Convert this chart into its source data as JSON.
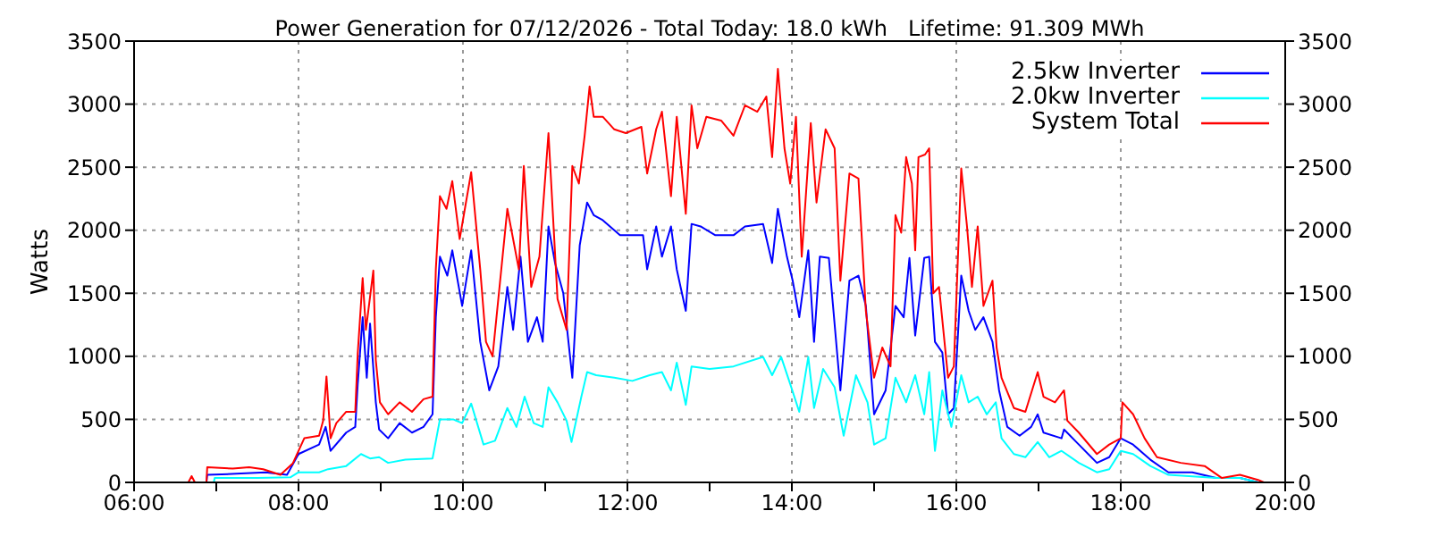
{
  "chart_data": {
    "type": "line",
    "title": "Power Generation for 07/12/2026 - Total Today: 18.0 kWh   Lifetime: 91.309 MWh",
    "ylabel": "Watts",
    "xlim": [
      6,
      20
    ],
    "xticks": [
      {
        "value": 6,
        "label": "06:00"
      },
      {
        "value": 7,
        "label": null
      },
      {
        "value": 8,
        "label": "08:00"
      },
      {
        "value": 9,
        "label": null
      },
      {
        "value": 10,
        "label": "10:00"
      },
      {
        "value": 11,
        "label": null
      },
      {
        "value": 12,
        "label": "12:00"
      },
      {
        "value": 13,
        "label": null
      },
      {
        "value": 14,
        "label": "14:00"
      },
      {
        "value": 15,
        "label": null
      },
      {
        "value": 16,
        "label": "16:00"
      },
      {
        "value": 17,
        "label": null
      },
      {
        "value": 18,
        "label": "18:00"
      },
      {
        "value": 19,
        "label": null
      },
      {
        "value": 20,
        "label": "20:00"
      }
    ],
    "ylim": [
      0,
      3500
    ],
    "yticks": [
      0,
      500,
      1000,
      1500,
      2000,
      2500,
      3000,
      3500
    ],
    "y2lim": [
      0,
      3500
    ],
    "y2ticks": [
      0,
      500,
      1000,
      1500,
      2000,
      2500,
      3000,
      3500
    ],
    "grid": true,
    "legend": "top right",
    "marker": "none",
    "line_style": "solid",
    "series": [
      {
        "name": "2.5kw Inverter",
        "color": "#0000ff",
        "x": [
          6.88,
          6.89,
          7.3,
          7.6,
          7.86,
          8.0,
          8.25,
          8.33,
          8.39,
          8.58,
          8.69,
          8.72,
          8.78,
          8.83,
          8.87,
          8.94,
          8.98,
          9.09,
          9.23,
          9.38,
          9.52,
          9.63,
          9.67,
          9.72,
          9.81,
          9.87,
          9.99,
          10.1,
          10.21,
          10.32,
          10.43,
          10.54,
          10.61,
          10.7,
          10.79,
          10.9,
          10.97,
          11.04,
          11.12,
          11.22,
          11.33,
          11.42,
          11.51,
          11.59,
          11.7,
          11.91,
          12.19,
          12.24,
          12.35,
          12.42,
          12.53,
          12.6,
          12.71,
          12.78,
          12.89,
          13.07,
          13.29,
          13.43,
          13.65,
          13.76,
          13.83,
          13.94,
          14.01,
          14.09,
          14.2,
          14.27,
          14.34,
          14.45,
          14.59,
          14.7,
          14.81,
          14.9,
          15.0,
          15.14,
          15.26,
          15.36,
          15.43,
          15.5,
          15.61,
          15.67,
          15.74,
          15.83,
          15.9,
          15.97,
          16.06,
          16.15,
          16.23,
          16.33,
          16.44,
          16.52,
          16.62,
          16.77,
          16.91,
          16.99,
          17.06,
          17.28,
          17.31,
          17.49,
          17.71,
          17.86,
          18.0,
          18.15,
          18.36,
          18.58,
          18.87,
          19.16,
          19.45,
          19.67
        ],
        "values": [
          0,
          60,
          70,
          80,
          60,
          225,
          300,
          440,
          250,
          395,
          440,
          780,
          1310,
          830,
          1260,
          635,
          420,
          350,
          470,
          395,
          440,
          540,
          1310,
          1790,
          1640,
          1840,
          1400,
          1840,
          1115,
          730,
          920,
          1550,
          1210,
          1790,
          1115,
          1310,
          1115,
          2030,
          1740,
          1500,
          830,
          1880,
          2220,
          2120,
          2080,
          1960,
          1960,
          1690,
          2030,
          1790,
          2030,
          1690,
          1360,
          2050,
          2030,
          1960,
          1960,
          2030,
          2050,
          1740,
          2170,
          1790,
          1600,
          1310,
          1840,
          1115,
          1790,
          1780,
          730,
          1600,
          1640,
          1400,
          540,
          730,
          1400,
          1310,
          1780,
          1165,
          1780,
          1790,
          1115,
          1030,
          540,
          590,
          1640,
          1360,
          1210,
          1310,
          1115,
          730,
          440,
          370,
          440,
          540,
          395,
          350,
          420,
          300,
          155,
          200,
          350,
          300,
          180,
          80,
          80,
          35,
          35,
          0
        ]
      },
      {
        "name": "2.0kw Inverter",
        "color": "#00ffff",
        "x": [
          6.97,
          6.98,
          7.5,
          7.9,
          8.0,
          8.25,
          8.36,
          8.58,
          8.76,
          8.87,
          8.98,
          9.09,
          9.3,
          9.63,
          9.72,
          9.88,
          9.99,
          10.1,
          10.25,
          10.39,
          10.54,
          10.65,
          10.75,
          10.86,
          10.97,
          11.04,
          11.15,
          11.26,
          11.32,
          11.44,
          11.51,
          11.62,
          11.84,
          12.06,
          12.27,
          12.42,
          12.53,
          12.6,
          12.71,
          12.78,
          13.0,
          13.29,
          13.65,
          13.76,
          13.87,
          13.98,
          14.09,
          14.2,
          14.27,
          14.38,
          14.52,
          14.63,
          14.78,
          14.92,
          15.0,
          15.14,
          15.26,
          15.39,
          15.5,
          15.61,
          15.67,
          15.74,
          15.83,
          15.94,
          16.06,
          16.15,
          16.26,
          16.37,
          16.48,
          16.55,
          16.7,
          16.84,
          16.99,
          17.13,
          17.28,
          17.49,
          17.71,
          17.86,
          18.0,
          18.15,
          18.36,
          18.58,
          19.16,
          19.45,
          19.67
        ],
        "values": [
          0,
          35,
          35,
          40,
          80,
          80,
          105,
          130,
          225,
          190,
          200,
          155,
          180,
          190,
          500,
          500,
          470,
          625,
          300,
          330,
          590,
          440,
          680,
          470,
          440,
          755,
          635,
          490,
          320,
          680,
          875,
          850,
          830,
          805,
          850,
          875,
          730,
          950,
          615,
          920,
          900,
          920,
          995,
          850,
          995,
          780,
          560,
          995,
          590,
          900,
          755,
          370,
          850,
          635,
          300,
          350,
          830,
          635,
          850,
          540,
          875,
          250,
          730,
          440,
          850,
          635,
          680,
          540,
          635,
          350,
          225,
          200,
          320,
          200,
          250,
          155,
          80,
          105,
          250,
          225,
          130,
          60,
          35,
          35,
          0
        ]
      },
      {
        "name": "System Total",
        "color": "#ff0000",
        "x": [
          6.66,
          6.7,
          6.74,
          6.88,
          6.89,
          7.2,
          7.4,
          7.57,
          7.78,
          7.93,
          8.07,
          8.25,
          8.3,
          8.34,
          8.39,
          8.46,
          8.58,
          8.69,
          8.72,
          8.78,
          8.82,
          8.91,
          8.94,
          8.99,
          9.09,
          9.23,
          9.38,
          9.52,
          9.63,
          9.67,
          9.72,
          9.8,
          9.87,
          9.96,
          10.1,
          10.21,
          10.28,
          10.36,
          10.54,
          10.68,
          10.74,
          10.83,
          10.93,
          11.04,
          11.15,
          11.26,
          11.33,
          11.41,
          11.48,
          11.54,
          11.59,
          11.7,
          11.84,
          11.98,
          12.17,
          12.24,
          12.35,
          12.42,
          12.53,
          12.6,
          12.71,
          12.78,
          12.85,
          12.96,
          13.14,
          13.29,
          13.43,
          13.58,
          13.69,
          13.76,
          13.83,
          13.91,
          13.98,
          14.05,
          14.12,
          14.23,
          14.3,
          14.41,
          14.52,
          14.59,
          14.7,
          14.81,
          14.9,
          15.0,
          15.1,
          15.2,
          15.26,
          15.33,
          15.39,
          15.46,
          15.5,
          15.54,
          15.62,
          15.67,
          15.72,
          15.79,
          15.9,
          15.97,
          16.06,
          16.13,
          16.19,
          16.26,
          16.33,
          16.44,
          16.49,
          16.55,
          16.7,
          16.84,
          16.99,
          17.06,
          17.2,
          17.31,
          17.35,
          17.49,
          17.71,
          17.86,
          18.0,
          18.02,
          18.15,
          18.29,
          18.44,
          18.73,
          19.02,
          19.23,
          19.45,
          19.67,
          19.74
        ],
        "values": [
          0,
          50,
          0,
          0,
          120,
          110,
          120,
          105,
          60,
          150,
          350,
          370,
          490,
          840,
          350,
          470,
          560,
          560,
          1020,
          1620,
          1210,
          1680,
          970,
          635,
          540,
          635,
          560,
          660,
          680,
          1690,
          2270,
          2170,
          2390,
          1930,
          2460,
          1690,
          1115,
          1000,
          2170,
          1690,
          2510,
          1550,
          1790,
          2770,
          1455,
          1210,
          2510,
          2370,
          2750,
          3140,
          2900,
          2900,
          2800,
          2770,
          2820,
          2450,
          2800,
          2940,
          2270,
          2900,
          2130,
          2990,
          2650,
          2900,
          2870,
          2750,
          2990,
          2940,
          3060,
          2580,
          3280,
          2650,
          2370,
          2900,
          1790,
          2850,
          2220,
          2800,
          2650,
          1600,
          2450,
          2410,
          1360,
          830,
          1070,
          920,
          2120,
          1980,
          2580,
          2370,
          1840,
          2580,
          2600,
          2650,
          1500,
          1550,
          830,
          920,
          2490,
          2030,
          1550,
          2030,
          1400,
          1600,
          1070,
          830,
          590,
          560,
          875,
          680,
          635,
          730,
          490,
          395,
          225,
          300,
          350,
          635,
          540,
          350,
          200,
          155,
          130,
          35,
          60,
          20,
          0
        ]
      }
    ]
  }
}
